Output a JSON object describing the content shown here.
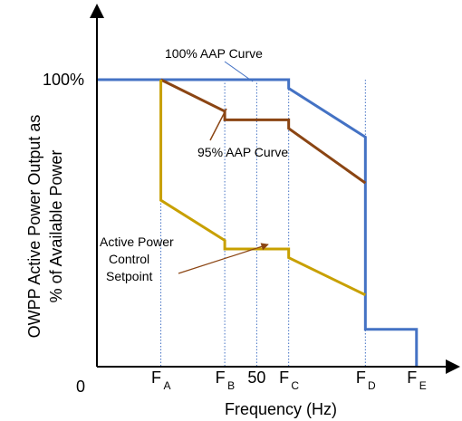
{
  "chart_data": {
    "type": "line",
    "ylabel_line1": "OWPP Active Power Output  as",
    "ylabel_line2": "% of Available Power",
    "xlabel": "Frequency (Hz)",
    "origin_label": "0",
    "y_marker_label": "100%",
    "x_ticks": [
      {
        "main": "F",
        "sub": "A"
      },
      {
        "main": "F",
        "sub": "B"
      },
      {
        "main": "50",
        "sub": ""
      },
      {
        "main": "F",
        "sub": "C"
      },
      {
        "main": "F",
        "sub": "D"
      },
      {
        "main": "F",
        "sub": "E"
      }
    ],
    "x_tick_positions": {
      "FA": 1,
      "FB": 2,
      "50": 2.5,
      "FC": 3,
      "FD": 4.2,
      "FE": 5
    },
    "ylim": [
      0,
      105
    ],
    "xlim": [
      0,
      5.4
    ],
    "series": [
      {
        "name": "100% AAP Curve",
        "color": "#4472C4",
        "points": [
          [
            0,
            100
          ],
          [
            3,
            100
          ],
          [
            3,
            97
          ],
          [
            4.2,
            80
          ],
          [
            4.2,
            13
          ],
          [
            5,
            13
          ],
          [
            5,
            0
          ]
        ]
      },
      {
        "name": "95% AAP Curve",
        "color": "#8B4513",
        "points": [
          [
            1,
            100
          ],
          [
            2,
            89
          ],
          [
            2,
            86
          ],
          [
            3,
            86
          ],
          [
            3,
            83
          ],
          [
            4.2,
            64
          ]
        ]
      },
      {
        "name": "Active Power Control Setpoint",
        "color": "#C8A000",
        "points": [
          [
            1,
            100
          ],
          [
            1,
            58
          ],
          [
            2,
            44
          ],
          [
            2,
            41
          ],
          [
            3,
            41
          ],
          [
            3,
            38
          ],
          [
            4.2,
            25
          ]
        ]
      }
    ],
    "annotations": {
      "aap100": "100% AAP Curve",
      "aap95": "95% AAP Curve",
      "setpoint": [
        "Active Power",
        "Control",
        "Setpoint"
      ]
    }
  }
}
